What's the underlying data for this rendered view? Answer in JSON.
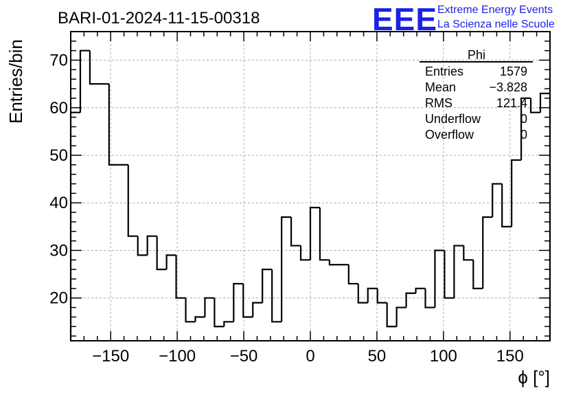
{
  "chart_data": {
    "type": "histogram",
    "title": "BARI-01-2024-11-15-00318",
    "xlabel": "ϕ [°]",
    "ylabel": "Entries/bin",
    "xlim": [
      -180,
      180
    ],
    "ylim": [
      11,
      76
    ],
    "bin_width": 7.2,
    "grid": true,
    "xticks": [
      -150,
      -100,
      -50,
      0,
      50,
      100,
      150
    ],
    "xtick_labels": [
      "−150",
      "−100",
      "−50",
      "0",
      "50",
      "100",
      "150"
    ],
    "yticks": [
      20,
      30,
      40,
      50,
      60,
      70
    ],
    "ytick_labels": [
      "20",
      "30",
      "40",
      "50",
      "60",
      "70"
    ],
    "values": [
      59,
      72,
      65,
      65,
      48,
      48,
      33,
      29,
      33,
      26,
      29,
      20,
      15,
      16,
      20,
      14,
      15,
      23,
      16,
      19,
      26,
      15,
      37,
      31,
      28,
      39,
      28,
      27,
      27,
      23,
      19,
      22,
      19,
      14,
      18,
      21,
      22,
      18,
      30,
      20,
      31,
      28,
      22,
      37,
      44,
      35,
      49,
      62,
      59,
      63
    ],
    "stats_box": {
      "title": "Phi",
      "rows": [
        {
          "label": "Entries",
          "value": "1579"
        },
        {
          "label": "Mean",
          "value": "−3.828"
        },
        {
          "label": "RMS",
          "value": "121.4"
        },
        {
          "label": "Underflow",
          "value": "0"
        },
        {
          "label": "Overflow",
          "value": "0"
        }
      ]
    }
  },
  "logo": {
    "mark": "EEE",
    "line1": "Extreme Energy Events",
    "line2": "La Scienza nelle Scuole"
  }
}
